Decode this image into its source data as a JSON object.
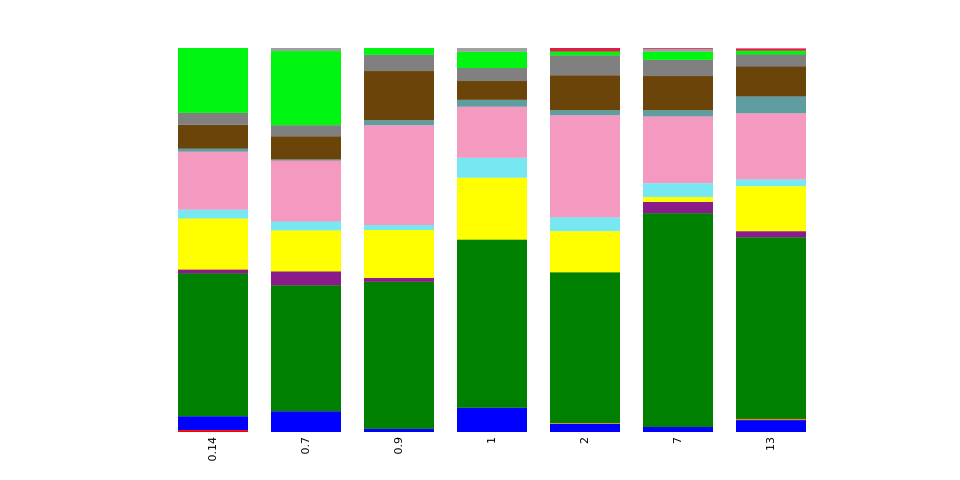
{
  "chart_data": {
    "type": "bar",
    "stacked": true,
    "normalized": true,
    "categories": [
      "0.14",
      "0.7",
      "0.9",
      "1",
      "2",
      "7",
      "13"
    ],
    "ylim": [
      0,
      1
    ],
    "grid": false,
    "legend": "none",
    "series": [
      {
        "color": "#ff0000",
        "values": [
          0.005,
          0.0,
          0.0,
          0.0,
          0.0,
          0.0,
          0.0
        ]
      },
      {
        "color": "#0000ff",
        "values": [
          0.036,
          0.054,
          0.008,
          0.063,
          0.021,
          0.013,
          0.031
        ]
      },
      {
        "color": "#ff7f00",
        "values": [
          0.0,
          0.0,
          0.0,
          0.0,
          0.002,
          0.0,
          0.003
        ]
      },
      {
        "color": "#008000",
        "values": [
          0.372,
          0.328,
          0.383,
          0.438,
          0.393,
          0.557,
          0.473
        ]
      },
      {
        "color": "#8b1a8b",
        "values": [
          0.01,
          0.036,
          0.01,
          0.0,
          0.0,
          0.029,
          0.016
        ]
      },
      {
        "color": "#ffff00",
        "values": [
          0.133,
          0.107,
          0.125,
          0.161,
          0.107,
          0.013,
          0.117
        ]
      },
      {
        "color": "#77e8f2",
        "values": [
          0.023,
          0.023,
          0.013,
          0.052,
          0.036,
          0.036,
          0.018
        ]
      },
      {
        "color": "#f49ac1",
        "values": [
          0.151,
          0.159,
          0.26,
          0.133,
          0.266,
          0.174,
          0.172
        ]
      },
      {
        "color": "#5f9ea0",
        "values": [
          0.008,
          0.003,
          0.013,
          0.018,
          0.013,
          0.016,
          0.044
        ]
      },
      {
        "color": "#6b4409",
        "values": [
          0.062,
          0.06,
          0.128,
          0.049,
          0.091,
          0.089,
          0.078
        ]
      },
      {
        "color": "#808080",
        "values": [
          0.031,
          0.029,
          0.042,
          0.034,
          0.052,
          0.042,
          0.031
        ]
      },
      {
        "color": "#00f510",
        "values": [
          0.169,
          0.193,
          0.018,
          0.042,
          0.01,
          0.021,
          0.01
        ]
      },
      {
        "color": "#a0a0a0",
        "values": [
          0.0,
          0.008,
          0.0,
          0.01,
          0.0,
          0.008,
          0.0
        ]
      },
      {
        "color": "#e6194b",
        "values": [
          0.0,
          0.0,
          0.0,
          0.0,
          0.009,
          0.002,
          0.006
        ]
      }
    ]
  }
}
